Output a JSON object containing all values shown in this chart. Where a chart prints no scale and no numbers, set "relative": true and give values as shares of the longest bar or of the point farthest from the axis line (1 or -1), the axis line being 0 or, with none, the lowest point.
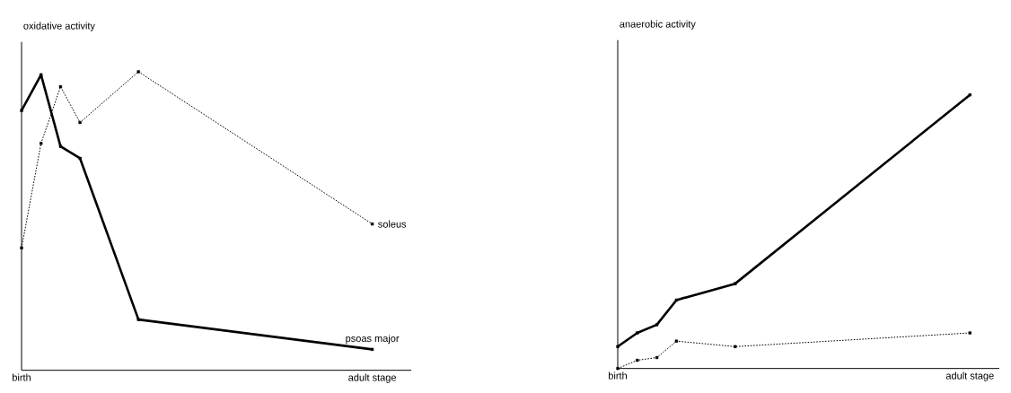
{
  "chart_data": [
    {
      "type": "line",
      "ylabel": "oxidative activity",
      "relative": true,
      "categories": [
        "birth",
        null,
        null,
        null,
        null,
        null,
        null,
        null,
        null,
        null,
        null,
        null,
        null,
        null,
        null,
        null,
        null,
        null,
        "adult stage"
      ],
      "marker": "square",
      "series": [
        {
          "name": "psoas major",
          "color": "#000000",
          "line_style": "solid",
          "values": [
            0.87,
            0.99,
            0.75,
            0.71,
            null,
            null,
            0.17,
            null,
            null,
            null,
            null,
            null,
            null,
            null,
            null,
            null,
            null,
            null,
            0.07
          ]
        },
        {
          "name": "soleus",
          "color": "#000000",
          "line_style": "dotted",
          "values": [
            0.41,
            0.76,
            0.95,
            0.83,
            null,
            null,
            1,
            null,
            null,
            null,
            null,
            null,
            null,
            null,
            null,
            null,
            null,
            null,
            0.49
          ]
        }
      ]
    },
    {
      "type": "line",
      "ylabel": "anaerobic activity",
      "relative": true,
      "categories": [
        "birth",
        null,
        null,
        null,
        null,
        null,
        null,
        null,
        null,
        null,
        null,
        null,
        null,
        null,
        null,
        null,
        null,
        null,
        "adult stage"
      ],
      "marker": "square",
      "series": [
        {
          "color": "#000000",
          "line_style": "solid",
          "values": [
            0.08,
            0.13,
            0.16,
            0.25,
            null,
            null,
            0.31,
            null,
            null,
            null,
            null,
            null,
            null,
            null,
            null,
            null,
            null,
            null,
            1
          ]
        },
        {
          "color": "#000000",
          "line_style": "dotted",
          "values": [
            0,
            0.03,
            0.04,
            0.1,
            null,
            null,
            0.08,
            null,
            null,
            null,
            null,
            null,
            null,
            null,
            null,
            null,
            null,
            null,
            0.13
          ]
        }
      ]
    }
  ]
}
